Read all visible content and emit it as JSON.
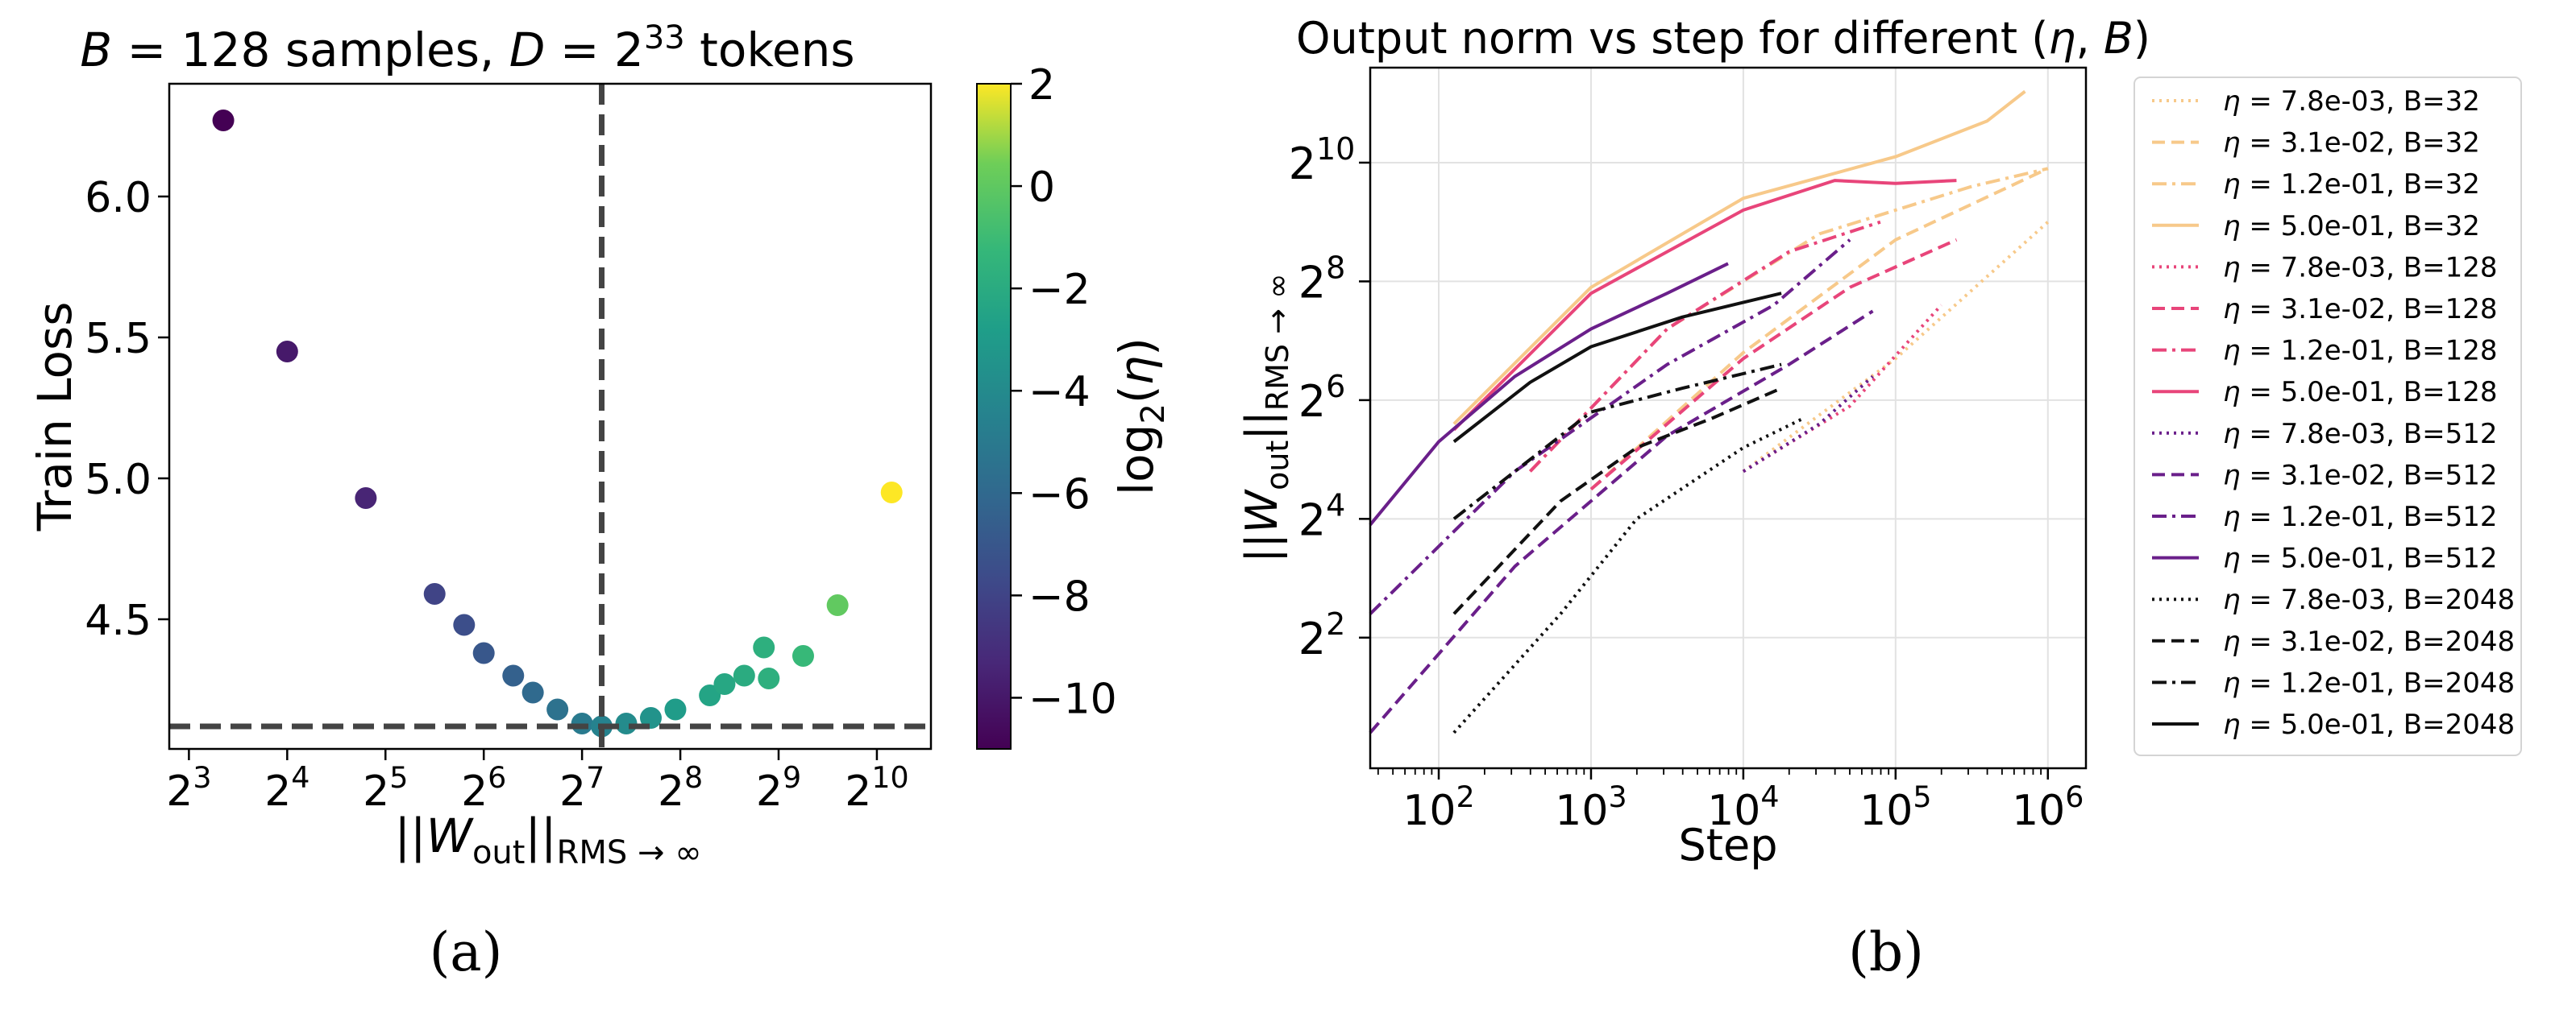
{
  "chart_data": [
    {
      "type": "scatter",
      "title_parts": [
        "B",
        " = 128 samples, ",
        "D",
        " = 2",
        "33",
        " tokens"
      ],
      "xlabel_parts": [
        "||",
        "W",
        "out",
        "||",
        "RMS → ∞"
      ],
      "ylabel": "Train Loss",
      "xscale": "log2",
      "xlim_log2": [
        2.8,
        10.55
      ],
      "ylim": [
        4.04,
        6.4
      ],
      "x_ticks": [
        {
          "base": "2",
          "exp": "3",
          "log2": 3
        },
        {
          "base": "2",
          "exp": "4",
          "log2": 4
        },
        {
          "base": "2",
          "exp": "5",
          "log2": 5
        },
        {
          "base": "2",
          "exp": "6",
          "log2": 6
        },
        {
          "base": "2",
          "exp": "7",
          "log2": 7
        },
        {
          "base": "2",
          "exp": "8",
          "log2": 8
        },
        {
          "base": "2",
          "exp": "9",
          "log2": 9
        },
        {
          "base": "2",
          "exp": "10",
          "log2": 10
        }
      ],
      "y_ticks": [
        {
          "label": "4.5",
          "value": 4.5
        },
        {
          "label": "5.0",
          "value": 5.0
        },
        {
          "label": "5.5",
          "value": 5.5
        },
        {
          "label": "6.0",
          "value": 6.0
        }
      ],
      "hline": 4.12,
      "vline_log2": 7.2,
      "colorbar": {
        "label_parts": [
          "log",
          "2",
          "(",
          "η",
          ")"
        ],
        "range": [
          -11,
          2
        ],
        "ticks": [
          {
            "label": "2",
            "value": 2
          },
          {
            "label": "0",
            "value": 0
          },
          {
            "label": "−2",
            "value": -2
          },
          {
            "label": "−4",
            "value": -4
          },
          {
            "label": "−6",
            "value": -6
          },
          {
            "label": "−8",
            "value": -8
          },
          {
            "label": "−10",
            "value": -10
          }
        ]
      },
      "points": [
        {
          "log2_norm": 3.35,
          "loss": 6.27,
          "log2_eta": -11
        },
        {
          "log2_norm": 4.0,
          "loss": 5.45,
          "log2_eta": -10
        },
        {
          "log2_norm": 4.8,
          "loss": 4.93,
          "log2_eta": -9.5
        },
        {
          "log2_norm": 5.5,
          "loss": 4.59,
          "log2_eta": -8
        },
        {
          "log2_norm": 5.8,
          "loss": 4.48,
          "log2_eta": -7.5
        },
        {
          "log2_norm": 6.0,
          "loss": 4.38,
          "log2_eta": -7
        },
        {
          "log2_norm": 6.3,
          "loss": 4.3,
          "log2_eta": -6.5
        },
        {
          "log2_norm": 6.5,
          "loss": 4.24,
          "log2_eta": -6
        },
        {
          "log2_norm": 6.75,
          "loss": 4.18,
          "log2_eta": -5.5
        },
        {
          "log2_norm": 7.0,
          "loss": 4.13,
          "log2_eta": -5
        },
        {
          "log2_norm": 7.2,
          "loss": 4.12,
          "log2_eta": -4.5
        },
        {
          "log2_norm": 7.45,
          "loss": 4.13,
          "log2_eta": -4
        },
        {
          "log2_norm": 7.7,
          "loss": 4.15,
          "log2_eta": -3.5
        },
        {
          "log2_norm": 7.95,
          "loss": 4.18,
          "log2_eta": -3
        },
        {
          "log2_norm": 8.3,
          "loss": 4.23,
          "log2_eta": -2.5
        },
        {
          "log2_norm": 8.45,
          "loss": 4.27,
          "log2_eta": -2.3
        },
        {
          "log2_norm": 8.65,
          "loss": 4.3,
          "log2_eta": -2
        },
        {
          "log2_norm": 8.85,
          "loss": 4.4,
          "log2_eta": -1.8
        },
        {
          "log2_norm": 8.9,
          "loss": 4.29,
          "log2_eta": -1.8
        },
        {
          "log2_norm": 9.25,
          "loss": 4.37,
          "log2_eta": -1.2
        },
        {
          "log2_norm": 9.6,
          "loss": 4.55,
          "log2_eta": 0
        },
        {
          "log2_norm": 10.15,
          "loss": 4.95,
          "log2_eta": 2
        }
      ],
      "caption": "(a)"
    },
    {
      "type": "line",
      "title_parts": [
        "Output norm vs step for different (",
        "η",
        ", ",
        "B",
        ")"
      ],
      "xlabel": "Step",
      "ylabel_parts": [
        "||",
        "W",
        "out",
        "||",
        "RMS → ∞"
      ],
      "xscale": "log10",
      "yscale": "log2",
      "xlim_log10": [
        1.55,
        6.25
      ],
      "ylim_log2": [
        -0.2,
        11.6
      ],
      "grid": true,
      "x_ticks": [
        {
          "base": "10",
          "exp": "2",
          "log10": 2
        },
        {
          "base": "10",
          "exp": "3",
          "log10": 3
        },
        {
          "base": "10",
          "exp": "4",
          "log10": 4
        },
        {
          "base": "10",
          "exp": "5",
          "log10": 5
        },
        {
          "base": "10",
          "exp": "6",
          "log10": 6
        }
      ],
      "y_ticks": [
        {
          "base": "2",
          "exp": "2",
          "log2": 2
        },
        {
          "base": "2",
          "exp": "4",
          "log2": 4
        },
        {
          "base": "2",
          "exp": "6",
          "log2": 6
        },
        {
          "base": "2",
          "exp": "8",
          "log2": 8
        },
        {
          "base": "2",
          "exp": "10",
          "log2": 10
        }
      ],
      "legend_position": "right, outside",
      "series": [
        {
          "eta": "7.8e-03",
          "B": "32",
          "legend": "= 7.8e-03, B=32",
          "color": "#f7c98a",
          "dash": "dotted",
          "points": [
            [
              4.0,
              4.8
            ],
            [
              5.0,
              6.7
            ],
            [
              6.0,
              9.0
            ]
          ]
        },
        {
          "eta": "3.1e-02",
          "B": "32",
          "legend": "= 3.1e-02, B=32",
          "color": "#f7c98a",
          "dash": "dashed",
          "points": [
            [
              3.0,
              4.5
            ],
            [
              4.0,
              6.8
            ],
            [
              5.0,
              8.7
            ],
            [
              6.0,
              9.9
            ]
          ]
        },
        {
          "eta": "1.2e-01",
          "B": "32",
          "legend": "= 1.2e-01, B=32",
          "color": "#f7c98a",
          "dash": "dashdot",
          "points": [
            [
              2.6,
              4.8
            ],
            [
              3.5,
              7.2
            ],
            [
              4.5,
              8.8
            ],
            [
              5.5,
              9.6
            ],
            [
              6.0,
              9.9
            ]
          ]
        },
        {
          "eta": "5.0e-01",
          "B": "32",
          "legend": "= 5.0e-01, B=32",
          "color": "#f7c98a",
          "dash": "solid",
          "points": [
            [
              2.1,
              5.6
            ],
            [
              3.0,
              7.9
            ],
            [
              4.0,
              9.4
            ],
            [
              5.0,
              10.1
            ],
            [
              5.6,
              10.7
            ],
            [
              5.85,
              11.2
            ]
          ]
        },
        {
          "eta": "7.8e-03",
          "B": "128",
          "legend": "= 7.8e-03, B=128",
          "color": "#e8457a",
          "dash": "dotted",
          "points": [
            [
              4.0,
              4.8
            ],
            [
              4.7,
              5.9
            ],
            [
              5.3,
              7.6
            ]
          ]
        },
        {
          "eta": "3.1e-02",
          "B": "128",
          "legend": "= 3.1e-02, B=128",
          "color": "#e8457a",
          "dash": "dashed",
          "points": [
            [
              3.0,
              4.5
            ],
            [
              4.0,
              6.7
            ],
            [
              4.7,
              7.9
            ],
            [
              5.4,
              8.7
            ]
          ]
        },
        {
          "eta": "1.2e-01",
          "B": "128",
          "legend": "= 1.2e-01, B=128",
          "color": "#e8457a",
          "dash": "dashdot",
          "points": [
            [
              2.6,
              4.8
            ],
            [
              3.5,
              7.2
            ],
            [
              4.3,
              8.5
            ],
            [
              4.9,
              9.0
            ]
          ]
        },
        {
          "eta": "5.0e-01",
          "B": "128",
          "legend": "= 5.0e-01, B=128",
          "color": "#e8457a",
          "dash": "solid",
          "points": [
            [
              2.1,
              5.5
            ],
            [
              3.0,
              7.8
            ],
            [
              4.0,
              9.2
            ],
            [
              4.6,
              9.7
            ],
            [
              5.0,
              9.65
            ],
            [
              5.4,
              9.7
            ]
          ]
        },
        {
          "eta": "7.8e-03",
          "B": "512",
          "legend": "= 7.8e-03, B=512",
          "color": "#6a1f8a",
          "dash": "dotted",
          "points": [
            [
              4.0,
              4.8
            ],
            [
              4.5,
              5.6
            ],
            [
              4.85,
              6.4
            ]
          ]
        },
        {
          "eta": "3.1e-02",
          "B": "512",
          "legend": "= 3.1e-02, B=512",
          "color": "#6a1f8a",
          "dash": "dashed",
          "points": [
            [
              1.55,
              0.4
            ],
            [
              2.5,
              3.2
            ],
            [
              3.5,
              5.4
            ],
            [
              4.3,
              6.6
            ],
            [
              4.85,
              7.5
            ]
          ]
        },
        {
          "eta": "1.2e-01",
          "B": "512",
          "legend": "= 1.2e-01, B=512",
          "color": "#6a1f8a",
          "dash": "dashdot",
          "points": [
            [
              1.55,
              2.4
            ],
            [
              2.5,
              4.8
            ],
            [
              3.5,
              6.6
            ],
            [
              4.2,
              7.6
            ],
            [
              4.7,
              8.7
            ]
          ]
        },
        {
          "eta": "5.0e-01",
          "B": "512",
          "legend": "= 5.0e-01, B=512",
          "color": "#6a1f8a",
          "dash": "solid",
          "points": [
            [
              1.55,
              3.9
            ],
            [
              2.0,
              5.3
            ],
            [
              2.5,
              6.4
            ],
            [
              3.0,
              7.2
            ],
            [
              3.5,
              7.8
            ],
            [
              3.9,
              8.3
            ]
          ]
        },
        {
          "eta": "7.8e-03",
          "B": "2048",
          "legend": "= 7.8e-03, B=2048",
          "color": "#111111",
          "dash": "dotted",
          "points": [
            [
              2.1,
              0.4
            ],
            [
              2.8,
              2.4
            ],
            [
              3.3,
              4.0
            ],
            [
              4.0,
              5.2
            ],
            [
              4.4,
              5.7
            ]
          ]
        },
        {
          "eta": "3.1e-02",
          "B": "2048",
          "legend": "= 3.1e-02, B=2048",
          "color": "#111111",
          "dash": "dashed",
          "points": [
            [
              2.1,
              2.4
            ],
            [
              2.8,
              4.3
            ],
            [
              3.3,
              5.2
            ],
            [
              3.8,
              5.7
            ],
            [
              4.25,
              6.2
            ]
          ]
        },
        {
          "eta": "1.2e-01",
          "B": "2048",
          "legend": "= 1.2e-01, B=2048",
          "color": "#111111",
          "dash": "dashdot",
          "points": [
            [
              2.1,
              4.0
            ],
            [
              2.6,
              5.0
            ],
            [
              3.0,
              5.8
            ],
            [
              3.6,
              6.2
            ],
            [
              4.25,
              6.6
            ]
          ]
        },
        {
          "eta": "5.0e-01",
          "B": "2048",
          "legend": "= 5.0e-01, B=2048",
          "color": "#111111",
          "dash": "solid",
          "points": [
            [
              2.1,
              5.3
            ],
            [
              2.6,
              6.3
            ],
            [
              3.0,
              6.9
            ],
            [
              3.6,
              7.4
            ],
            [
              4.25,
              7.8
            ]
          ]
        }
      ],
      "caption": "(b)"
    }
  ]
}
